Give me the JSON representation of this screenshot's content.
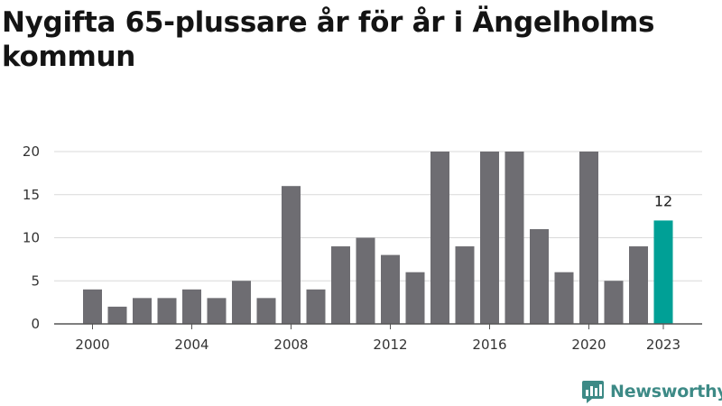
{
  "title": "Nygifta 65-plussare år för år i Ängelholms kommun",
  "brand": {
    "name": "Newsworthy",
    "icon": "newsworthy-logo-icon",
    "color": "#3d8a86"
  },
  "chart_data": {
    "type": "bar",
    "title": "Nygifta 65-plussare år för år i Ängelholms kommun",
    "xlabel": "",
    "ylabel": "",
    "categories": [
      "2000",
      "2001",
      "2002",
      "2003",
      "2004",
      "2005",
      "2006",
      "2007",
      "2008",
      "2009",
      "2010",
      "2011",
      "2012",
      "2013",
      "2014",
      "2015",
      "2016",
      "2017",
      "2018",
      "2019",
      "2020",
      "2021",
      "2022",
      "2023"
    ],
    "values": [
      4,
      2,
      3,
      3,
      4,
      3,
      5,
      3,
      16,
      4,
      9,
      10,
      8,
      6,
      20,
      9,
      20,
      20,
      11,
      6,
      20,
      5,
      9,
      12
    ],
    "x_tick_labels": [
      "2000",
      "2004",
      "2008",
      "2012",
      "2016",
      "2020",
      "2023"
    ],
    "y_ticks": [
      0,
      5,
      10,
      15,
      20
    ],
    "ylim": [
      0,
      20
    ],
    "grid": "horizontal",
    "legend": "none",
    "bar_color": "#6e6d72",
    "highlight": {
      "category": "2023",
      "value": 12,
      "label": "12",
      "color": "#00a096"
    }
  }
}
